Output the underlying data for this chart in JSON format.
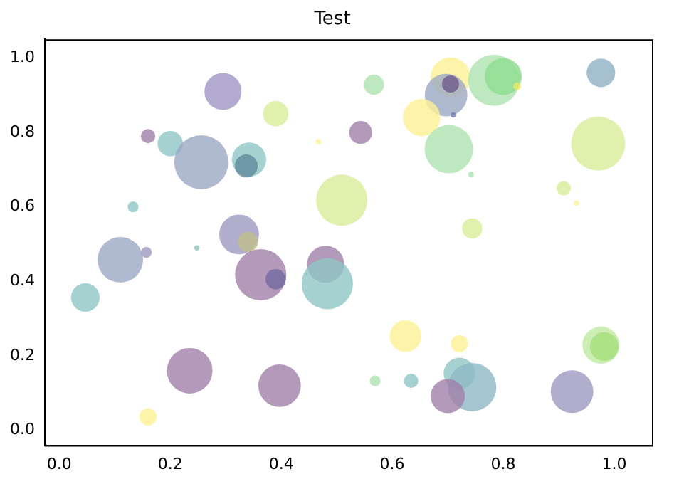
{
  "chart_data": {
    "type": "bubble",
    "title": "Test",
    "x": [
      0.295,
      0.39,
      0.16,
      0.2,
      0.256,
      0.342,
      0.337,
      0.467,
      0.543,
      0.509,
      0.133,
      0.324,
      0.34,
      0.248,
      0.11,
      0.157,
      0.047,
      0.363,
      0.39,
      0.48,
      0.483,
      0.235,
      0.397,
      0.16,
      0.567,
      0.705,
      0.697,
      0.705,
      0.71,
      0.653,
      0.783,
      0.8,
      0.825,
      0.976,
      0.702,
      0.742,
      0.909,
      0.932,
      0.971,
      0.744,
      0.624,
      0.721,
      0.569,
      0.634,
      0.721,
      0.744,
      0.7,
      0.924,
      0.976,
      0.982
    ],
    "values": [
      0.91,
      0.85,
      0.79,
      0.77,
      0.72,
      0.727,
      0.71,
      0.775,
      0.8,
      0.618,
      0.6,
      0.526,
      0.506,
      0.49,
      0.458,
      0.478,
      0.357,
      0.418,
      0.406,
      0.446,
      0.394,
      0.16,
      0.12,
      0.036,
      0.928,
      0.948,
      0.9,
      0.93,
      0.847,
      0.84,
      0.94,
      0.95,
      0.924,
      0.96,
      0.755,
      0.687,
      0.65,
      0.61,
      0.77,
      0.542,
      0.253,
      0.233,
      0.133,
      0.133,
      0.153,
      0.116,
      0.092,
      0.104,
      0.229,
      0.225
    ],
    "sizes": [
      0.47,
      0.22,
      0.07,
      0.22,
      1,
      0.4,
      0.18,
      0.01,
      0.18,
      0.9,
      0.04,
      0.54,
      0.14,
      0.01,
      0.71,
      0.04,
      0.28,
      0.9,
      0.14,
      0.47,
      0.9,
      0.71,
      0.62,
      0.1,
      0.14,
      0.54,
      0.62,
      0.1,
      0.01,
      0.47,
      0.9,
      0.47,
      0.02,
      0.28,
      0.8,
      0.01,
      0.07,
      0.01,
      1,
      0.14,
      0.34,
      0.1,
      0.04,
      0.07,
      0.34,
      0.8,
      0.4,
      0.62,
      0.47,
      0.28
    ],
    "colors": [
      "#a096c3",
      "#d8ec98",
      "#a07fa9",
      "#8fc6c4",
      "#9ba7c4",
      "#8fc6c4",
      "#5f8a9a",
      "#fdf194",
      "#a07fa9",
      "#d8ec98",
      "#8fc6c4",
      "#9d98c0",
      "#c2be8c",
      "#8fc6c4",
      "#9ba7c4",
      "#9d98c0",
      "#8fc6c4",
      "#a07fa9",
      "#6f6aa0",
      "#a07fa9",
      "#8fc6c4",
      "#a07fa9",
      "#a07fa9",
      "#fdf194",
      "#aee3b0",
      "#fdf194",
      "#9ba7c4",
      "#6f5a8c",
      "#6f7aa8",
      "#fdf194",
      "#aee3b0",
      "#8fdc8f",
      "#f0e860",
      "#8fb0c4",
      "#aee3b0",
      "#aee3b0",
      "#d8ec98",
      "#fdf194",
      "#d8ec98",
      "#d8ec98",
      "#fdf194",
      "#fdf194",
      "#aee3b0",
      "#8fc6c4",
      "#8fc6c4",
      "#8fb8c4",
      "#a07fa9",
      "#9d98c0",
      "#bfe8a0",
      "#a6de7a"
    ],
    "xlim": [
      -0.026,
      1.068
    ],
    "ylim": [
      -0.04,
      1.05
    ],
    "xticks": [
      {
        "value": 0,
        "label": "0.0"
      },
      {
        "value": 0.2,
        "label": "0.2"
      },
      {
        "value": 0.4,
        "label": "0.4"
      },
      {
        "value": 0.6,
        "label": "0.6"
      },
      {
        "value": 0.8,
        "label": "0.8"
      },
      {
        "value": 1,
        "label": "1.0"
      }
    ],
    "yticks": [
      {
        "value": 0,
        "label": "0.0"
      },
      {
        "value": 0.2,
        "label": "0.2"
      },
      {
        "value": 0.4,
        "label": "0.4"
      },
      {
        "value": 0.6,
        "label": "0.6"
      },
      {
        "value": 0.8,
        "label": "0.8"
      },
      {
        "value": 1,
        "label": "1.0"
      }
    ],
    "grid": false,
    "legend": false
  }
}
